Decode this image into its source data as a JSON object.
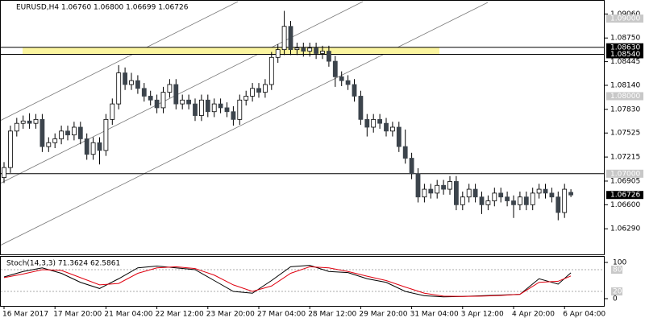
{
  "chart_data": {
    "type": "candlestick",
    "title": "EURUSD,H4  1.06760 1.06800 1.06699 1.06726",
    "ylim": [
      1.0596,
      1.0924
    ],
    "yticks": [
      {
        "value": 1.0906,
        "label": "1.09060"
      },
      {
        "value": 1.0875,
        "label": "1.08750"
      },
      {
        "value": 1.08445,
        "label": "1.08445"
      },
      {
        "value": 1.0814,
        "label": "1.08140"
      },
      {
        "value": 1.0783,
        "label": "1.07830"
      },
      {
        "value": 1.07525,
        "label": "1.07525"
      },
      {
        "value": 1.07215,
        "label": "1.07215"
      },
      {
        "value": 1.06905,
        "label": "1.06905"
      },
      {
        "value": 1.066,
        "label": "1.06600"
      },
      {
        "value": 1.0629,
        "label": "1.06290"
      }
    ],
    "round_levels": [
      {
        "value": 1.09,
        "label": "1.09000"
      },
      {
        "value": 1.08,
        "label": "1.08000"
      },
      {
        "value": 1.07,
        "label": "1.07000"
      }
    ],
    "levels": [
      {
        "value": 1.0863,
        "label": "1.08630"
      },
      {
        "value": 1.0854,
        "label": "1.08540"
      },
      {
        "value": 1.07,
        "label": "1.07000"
      }
    ],
    "zone": [
      1.0854,
      1.0863
    ],
    "zone_color": "#fbf5a0",
    "up_color": "#ffffff",
    "down_color": "#3c444c",
    "ohlc": [
      [
        1.0695,
        1.0715,
        1.0688,
        1.0708
      ],
      [
        1.0708,
        1.0762,
        1.0701,
        1.0755
      ],
      [
        1.0755,
        1.0772,
        1.0748,
        1.0765
      ],
      [
        1.0765,
        1.0775,
        1.0758,
        1.0768
      ],
      [
        1.0768,
        1.0778,
        1.0758,
        1.0765
      ],
      [
        1.0765,
        1.0777,
        1.0758,
        1.077
      ],
      [
        1.077,
        1.0777,
        1.0728,
        1.0735
      ],
      [
        1.0735,
        1.0747,
        1.0728,
        1.074
      ],
      [
        1.074,
        1.0752,
        1.0733,
        1.0745
      ],
      [
        1.0745,
        1.0762,
        1.0738,
        1.0755
      ],
      [
        1.0755,
        1.0762,
        1.0743,
        1.075
      ],
      [
        1.075,
        1.0767,
        1.0743,
        1.076
      ],
      [
        1.076,
        1.0767,
        1.0738,
        1.0745
      ],
      [
        1.0745,
        1.0752,
        1.0718,
        1.0725
      ],
      [
        1.0725,
        1.0747,
        1.0718,
        1.074
      ],
      [
        1.074,
        1.0747,
        1.0712,
        1.073
      ],
      [
        1.073,
        1.0777,
        1.0723,
        1.077
      ],
      [
        1.077,
        1.0797,
        1.0763,
        1.079
      ],
      [
        1.079,
        1.084,
        1.0783,
        1.083
      ],
      [
        1.083,
        1.0837,
        1.0808,
        1.0815
      ],
      [
        1.0815,
        1.083,
        1.0808,
        1.082
      ],
      [
        1.082,
        1.0827,
        1.0803,
        1.081
      ],
      [
        1.081,
        1.0817,
        1.0793,
        1.08
      ],
      [
        1.08,
        1.0807,
        1.0788,
        1.0795
      ],
      [
        1.0795,
        1.0802,
        1.0778,
        1.0785
      ],
      [
        1.0785,
        1.0812,
        1.0778,
        1.0805
      ],
      [
        1.0805,
        1.0822,
        1.0798,
        1.0815
      ],
      [
        1.0815,
        1.0822,
        1.0783,
        1.079
      ],
      [
        1.079,
        1.0802,
        1.0783,
        1.0795
      ],
      [
        1.0795,
        1.0802,
        1.0783,
        1.079
      ],
      [
        1.079,
        1.0797,
        1.0768,
        1.0775
      ],
      [
        1.0775,
        1.0802,
        1.0768,
        1.0795
      ],
      [
        1.0795,
        1.0802,
        1.0773,
        1.078
      ],
      [
        1.078,
        1.0797,
        1.0773,
        1.079
      ],
      [
        1.079,
        1.0797,
        1.0778,
        1.0785
      ],
      [
        1.0785,
        1.0792,
        1.0773,
        1.078
      ],
      [
        1.078,
        1.0787,
        1.0762,
        1.077
      ],
      [
        1.077,
        1.0802,
        1.0763,
        1.0795
      ],
      [
        1.0795,
        1.0807,
        1.0788,
        1.08
      ],
      [
        1.08,
        1.0817,
        1.0793,
        1.081
      ],
      [
        1.081,
        1.0817,
        1.0798,
        1.0805
      ],
      [
        1.0805,
        1.0822,
        1.0798,
        1.0815
      ],
      [
        1.0815,
        1.0857,
        1.0808,
        1.085
      ],
      [
        1.085,
        1.0867,
        1.0843,
        1.086
      ],
      [
        1.086,
        1.091,
        1.0853,
        1.089
      ],
      [
        1.089,
        1.0897,
        1.0853,
        1.086
      ],
      [
        1.086,
        1.0869,
        1.0853,
        1.0862
      ],
      [
        1.0862,
        1.0869,
        1.0851,
        1.0858
      ],
      [
        1.0858,
        1.0869,
        1.0851,
        1.0862
      ],
      [
        1.0862,
        1.0869,
        1.0848,
        1.0855
      ],
      [
        1.0855,
        1.0865,
        1.0848,
        1.0858
      ],
      [
        1.0858,
        1.0865,
        1.0838,
        1.0845
      ],
      [
        1.0845,
        1.0852,
        1.0812,
        1.0825
      ],
      [
        1.0825,
        1.0832,
        1.0813,
        1.082
      ],
      [
        1.082,
        1.0827,
        1.0808,
        1.0815
      ],
      [
        1.0815,
        1.0822,
        1.0793,
        1.08
      ],
      [
        1.08,
        1.0807,
        1.0763,
        1.077
      ],
      [
        1.077,
        1.0777,
        1.0748,
        1.076
      ],
      [
        1.076,
        1.0777,
        1.0753,
        1.077
      ],
      [
        1.077,
        1.0777,
        1.0758,
        1.0765
      ],
      [
        1.0765,
        1.0772,
        1.0748,
        1.0755
      ],
      [
        1.0755,
        1.0767,
        1.0748,
        1.076
      ],
      [
        1.076,
        1.0767,
        1.0728,
        1.0735
      ],
      [
        1.0735,
        1.0757,
        1.0713,
        1.072
      ],
      [
        1.072,
        1.0727,
        1.0693,
        1.07
      ],
      [
        1.07,
        1.0707,
        1.0663,
        1.067
      ],
      [
        1.067,
        1.0687,
        1.0663,
        1.068
      ],
      [
        1.068,
        1.0687,
        1.0668,
        1.0675
      ],
      [
        1.0675,
        1.0692,
        1.0668,
        1.0685
      ],
      [
        1.0685,
        1.0692,
        1.0673,
        1.068
      ],
      [
        1.068,
        1.0697,
        1.0673,
        1.069
      ],
      [
        1.069,
        1.0697,
        1.0653,
        1.066
      ],
      [
        1.066,
        1.0677,
        1.0653,
        1.067
      ],
      [
        1.067,
        1.0687,
        1.0663,
        1.068
      ],
      [
        1.068,
        1.0687,
        1.0663,
        1.067
      ],
      [
        1.067,
        1.0677,
        1.0648,
        1.066
      ],
      [
        1.066,
        1.0672,
        1.0653,
        1.0665
      ],
      [
        1.0665,
        1.0682,
        1.0658,
        1.0675
      ],
      [
        1.0675,
        1.0682,
        1.0663,
        1.067
      ],
      [
        1.067,
        1.0677,
        1.0658,
        1.0665
      ],
      [
        1.0665,
        1.0672,
        1.0643,
        1.066
      ],
      [
        1.066,
        1.0677,
        1.0653,
        1.067
      ],
      [
        1.067,
        1.0677,
        1.0653,
        1.066
      ],
      [
        1.066,
        1.0682,
        1.0653,
        1.0675
      ],
      [
        1.0675,
        1.0687,
        1.0668,
        1.068
      ],
      [
        1.068,
        1.0687,
        1.0668,
        1.0675
      ],
      [
        1.0675,
        1.0682,
        1.0663,
        1.067
      ],
      [
        1.067,
        1.0677,
        1.064,
        1.065
      ],
      [
        1.065,
        1.0687,
        1.0643,
        1.068
      ],
      [
        1.0676,
        1.068,
        1.06699,
        1.06726
      ]
    ],
    "xticks": [
      {
        "value": 0,
        "label": "16 Mar 2017"
      },
      {
        "value": 8,
        "label": "17 Mar 20:00"
      },
      {
        "value": 16,
        "label": "21 Mar 04:00"
      },
      {
        "value": 24,
        "label": "22 Mar 12:00"
      },
      {
        "value": 32,
        "label": "23 Mar 20:00"
      },
      {
        "value": 40,
        "label": "27 Mar 04:00"
      },
      {
        "value": 48,
        "label": "28 Mar 12:00"
      },
      {
        "value": 56,
        "label": "29 Mar 20:00"
      },
      {
        "value": 64,
        "label": "31 Mar 04:00"
      },
      {
        "value": 72,
        "label": "3 Apr 12:00"
      },
      {
        "value": 80,
        "label": "4 Apr 20:00"
      },
      {
        "value": 88,
        "label": "6 Apr 04:00"
      }
    ],
    "stochastic": {
      "title": "Stoch(14,3,3) 71.3624 62.5861",
      "ylim": [
        0,
        100
      ],
      "yticks": [
        100,
        0
      ],
      "levels": [
        80,
        20
      ],
      "x": [
        0,
        3,
        6,
        9,
        12,
        15,
        18,
        21,
        24,
        27,
        30,
        33,
        36,
        39,
        42,
        45,
        48,
        51,
        54,
        57,
        60,
        63,
        66,
        69,
        72,
        75,
        78,
        81,
        84,
        87,
        89
      ],
      "series": [
        {
          "name": "Main",
          "color": "#000000",
          "values": [
            60,
            75,
            85,
            70,
            45,
            28,
            55,
            85,
            90,
            85,
            80,
            50,
            20,
            15,
            50,
            88,
            92,
            75,
            72,
            55,
            45,
            20,
            8,
            5,
            6,
            8,
            10,
            12,
            55,
            40,
            71.3624
          ]
        },
        {
          "name": "Signal",
          "color": "#e0000f",
          "values": [
            58,
            68,
            80,
            78,
            58,
            38,
            42,
            70,
            85,
            88,
            83,
            65,
            38,
            20,
            35,
            70,
            88,
            85,
            75,
            62,
            50,
            32,
            15,
            7,
            6,
            7,
            9,
            12,
            45,
            48,
            62.5861
          ]
        }
      ]
    }
  }
}
